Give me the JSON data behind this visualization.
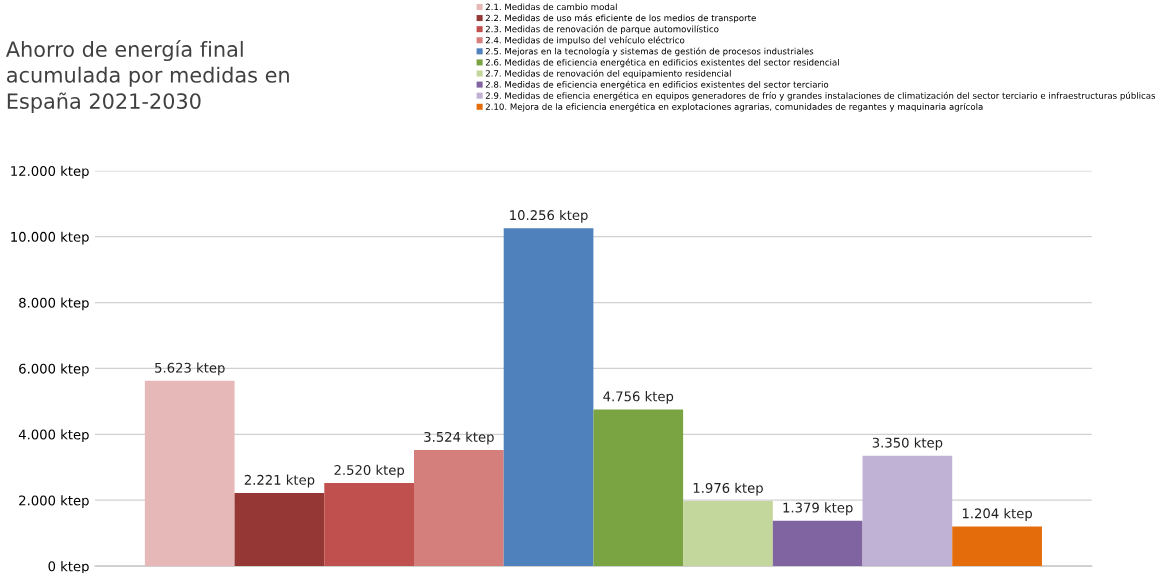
{
  "chart_data": {
    "type": "bar",
    "title": "Ahorro de energía final\nacumulada por medidas en\nEspaña 2021-2030",
    "categories": [
      null
    ],
    "series": [
      {
        "name": "2.1. Medidas de cambio modal",
        "color": "#e6b9b8",
        "values": [
          5623
        ],
        "value_labels": [
          "5.623 ktep"
        ]
      },
      {
        "name": "2.2. Medidas de uso más eficiente de los medios de transporte",
        "color": "#953735",
        "values": [
          2221
        ],
        "value_labels": [
          "2.221 ktep"
        ]
      },
      {
        "name": "2.3. Medidas de renovación de parque automovilístico",
        "color": "#c0504d",
        "values": [
          2520
        ],
        "value_labels": [
          "2.520 ktep"
        ]
      },
      {
        "name": "2.4. Medidas de impulso del vehículo eléctrico",
        "color": "#d47f7c",
        "values": [
          3524
        ],
        "value_labels": [
          "3.524 ktep"
        ]
      },
      {
        "name": "2.5. Mejoras en la tecnología y sistemas de gestión de procesos industriales",
        "color": "#4f81bd",
        "values": [
          10256
        ],
        "value_labels": [
          "10.256 ktep"
        ]
      },
      {
        "name": "2.6. Medidas de eficiencia energética en edificios existentes del sector residencial",
        "color": "#7aa342",
        "values": [
          4756
        ],
        "value_labels": [
          "4.756 ktep"
        ]
      },
      {
        "name": "2.7. Medidas de renovación del equipamiento residencial",
        "color": "#c3d69b",
        "values": [
          1976
        ],
        "value_labels": [
          "1.976 ktep"
        ]
      },
      {
        "name": "2.8. Medidas de eficiencia energética en edificios existentes del sector terciario",
        "color": "#8064a2",
        "values": [
          1379
        ],
        "value_labels": [
          "1.379 ktep"
        ]
      },
      {
        "name": "2.9. Medidas de efiencia energética en equipos generadores de frío y grandes instalaciones de climatización del sector terciario e infraestructuras públicas",
        "color": "#c0b2d4",
        "values": [
          3350
        ],
        "value_labels": [
          "3.350 ktep"
        ]
      },
      {
        "name": "2.10. Mejora de la eficiencia energética en explotaciones agrarias, comunidades de regantes y maquinaria agrícola",
        "color": "#e46c0a",
        "values": [
          1204
        ],
        "value_labels": [
          "1.204 ktep"
        ]
      }
    ],
    "ylim": [
      0,
      12000
    ],
    "yticks": [
      {
        "value": 0,
        "label": "0 ktep"
      },
      {
        "value": 2000,
        "label": "2.000 ktep"
      },
      {
        "value": 4000,
        "label": "4.000 ktep"
      },
      {
        "value": 6000,
        "label": "6.000 ktep"
      },
      {
        "value": 8000,
        "label": "8.000 ktep"
      },
      {
        "value": 10000,
        "label": "10.000 ktep"
      },
      {
        "value": 12000,
        "label": "12.000 ktep"
      }
    ],
    "grid": "y",
    "legend": "top right"
  }
}
